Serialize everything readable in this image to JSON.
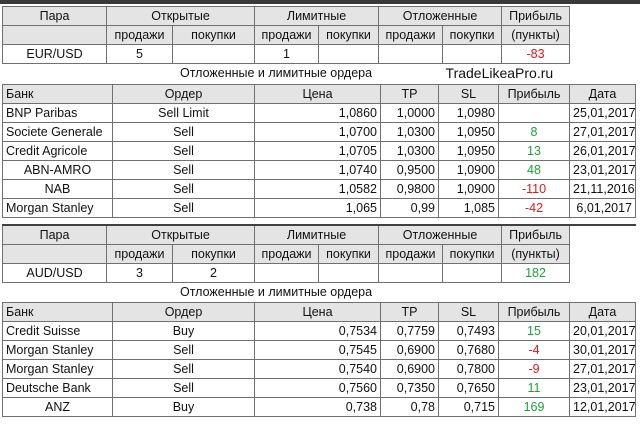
{
  "section1": {
    "headers": {
      "pair": "Пара",
      "open": "Открытые",
      "limit": "Лимитные",
      "pending": "Отложенные",
      "profit": "Прибыль"
    },
    "subheaders": [
      "продажи",
      "покупки",
      "продажи",
      "покупки",
      "продажи",
      "покупки",
      "(пункты)"
    ],
    "row": {
      "pair": "EUR/USD",
      "open_sell": "5",
      "open_buy": "",
      "limit_sell": "1",
      "limit_buy": "",
      "pend_sell": "",
      "pend_buy": "",
      "profit": "-83"
    },
    "caption": "Отложенные и лимитные ордера",
    "site": "TradeLikeaPro.ru",
    "order_headers": [
      "Банк",
      "Ордер",
      "Цена",
      "TP",
      "SL",
      "Прибыль",
      "Дата"
    ],
    "orders": [
      {
        "bank": "BNP Paribas",
        "order": "Sell Limit",
        "price": "1,0860",
        "tp": "1,0000",
        "sl": "1,0980",
        "profit": "",
        "date": "25,01,2017"
      },
      {
        "bank": "Societe Generale",
        "order": "Sell",
        "price": "1,0700",
        "tp": "1,0300",
        "sl": "1,0950",
        "profit": "8",
        "date": "27,01,2017"
      },
      {
        "bank": "Credit Agricole",
        "order": "Sell",
        "price": "1,0705",
        "tp": "1,0300",
        "sl": "1,0950",
        "profit": "13",
        "date": "26,01,2017"
      },
      {
        "bank": "ABN-AMRO",
        "order": "Sell",
        "price": "1,0740",
        "tp": "0,9500",
        "sl": "1,0900",
        "profit": "48",
        "date": "23,01,2017"
      },
      {
        "bank": "NAB",
        "order": "Sell",
        "price": "1,0582",
        "tp": "0,9800",
        "sl": "1,0900",
        "profit": "-110",
        "date": "21,11,2016"
      },
      {
        "bank": "Morgan Stanley",
        "order": "Sell",
        "price": "1,065",
        "tp": "0,99",
        "sl": "1,085",
        "profit": "-42",
        "date": "6,01,2017"
      }
    ]
  },
  "section2": {
    "headers": {
      "pair": "Пара",
      "open": "Открытые",
      "limit": "Лимитные",
      "pending": "Отложенные",
      "profit": "Прибыль"
    },
    "subheaders": [
      "продажи",
      "покупки",
      "продажи",
      "покупки",
      "продажи",
      "покупки",
      "(пункты)"
    ],
    "row": {
      "pair": "AUD/USD",
      "open_sell": "3",
      "open_buy": "2",
      "limit_sell": "",
      "limit_buy": "",
      "pend_sell": "",
      "pend_buy": "",
      "profit": "182"
    },
    "caption": "Отложенные и лимитные ордера",
    "order_headers": [
      "Банк",
      "Ордер",
      "Цена",
      "TP",
      "SL",
      "Прибыль",
      "Дата"
    ],
    "orders": [
      {
        "bank": "Credit Suisse",
        "order": "Buy",
        "price": "0,7534",
        "tp": "0,7759",
        "sl": "0,7493",
        "profit": "15",
        "date": "20,01,2017"
      },
      {
        "bank": "Morgan Stanley",
        "order": "Sell",
        "price": "0,7545",
        "tp": "0,6900",
        "sl": "0,7680",
        "profit": "-4",
        "date": "30,01,2017"
      },
      {
        "bank": "Morgan Stanley",
        "order": "Sell",
        "price": "0,7540",
        "tp": "0,6900",
        "sl": "0,7800",
        "profit": "-9",
        "date": "27,01,2017"
      },
      {
        "bank": "Deutsche Bank",
        "order": "Sell",
        "price": "0,7560",
        "tp": "0,7350",
        "sl": "0,7650",
        "profit": "11",
        "date": "23,01,2017"
      },
      {
        "bank": "ANZ",
        "order": "Buy",
        "price": "0,738",
        "tp": "0,78",
        "sl": "0,715",
        "profit": "169",
        "date": "12,01,2017"
      }
    ]
  },
  "colors": {
    "positive": "#1ca03a",
    "negative": "#e01818",
    "header_bg": "#e4e4e4"
  }
}
